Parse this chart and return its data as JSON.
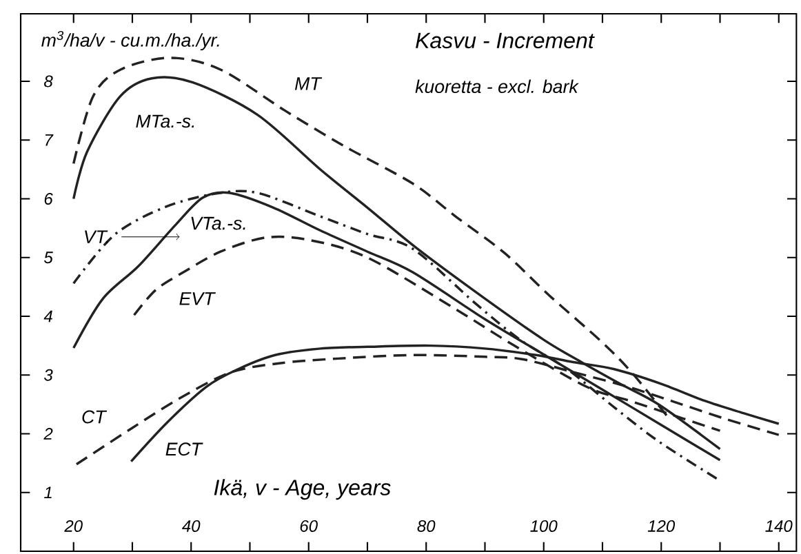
{
  "chart_data": {
    "type": "line",
    "title": "Kasvu - Increment",
    "subtitle": "kuoretta - excl. bark",
    "ylabel": "m$^{3}$/ha/v - cu.m./ha./yr.",
    "xlabel": "Ikä, v - Age, years",
    "xlim": [
      11,
      143
    ],
    "ylim": [
      0,
      9.15
    ],
    "xticks": [
      20,
      {
        "value": 30,
        "label": null
      },
      40,
      {
        "value": 50,
        "label": null
      },
      60,
      {
        "value": 70,
        "label": null
      },
      80,
      {
        "value": 90,
        "label": null
      },
      100,
      {
        "value": 110,
        "label": null
      },
      120,
      {
        "value": 130,
        "label": null
      },
      140
    ],
    "yticks": [
      1,
      2,
      3,
      4,
      5,
      6,
      7,
      8
    ],
    "marker": "none",
    "series": [
      {
        "name": "MT",
        "color": "#222222",
        "line_style": "dashed",
        "x": [
          20,
          23.3,
          28,
          36.4,
          45,
          56,
          66,
          77.7,
          85,
          93.3,
          101,
          109.7,
          115,
          121
        ],
        "values": [
          6.6,
          7.74,
          8.2,
          8.4,
          8.2,
          7.5,
          6.9,
          6.26,
          5.7,
          5.08,
          4.35,
          3.58,
          3.04,
          2.3
        ]
      },
      {
        "name": "MTa.-s.",
        "color": "#222222",
        "line_style": "solid",
        "x": [
          20,
          22.3,
          27.9,
          33.3,
          40.3,
          51.3,
          62.1,
          70,
          78.5,
          90,
          100,
          106.4,
          113,
          119.7,
          130
        ],
        "values": [
          6.0,
          6.8,
          7.74,
          8.05,
          7.98,
          7.43,
          6.49,
          5.85,
          5.15,
          4.3,
          3.6,
          3.22,
          2.85,
          2.49,
          1.74
        ]
      },
      {
        "name": "VT.",
        "color": "#222222",
        "line_style": "dashdot",
        "x": [
          20,
          27,
          35.6,
          44.3,
          51.3,
          62,
          70,
          77.7,
          88.6,
          96,
          104,
          112,
          119.7,
          129.7
        ],
        "values": [
          4.56,
          5.39,
          5.86,
          6.09,
          6.1,
          5.7,
          5.4,
          5.15,
          4.2,
          3.6,
          3.1,
          2.45,
          1.86,
          1.22
        ]
      },
      {
        "name": "VTa.-s.",
        "color": "#222222",
        "line_style": "solid",
        "x": [
          20,
          25,
          31,
          37.3,
          42,
          46.6,
          54,
          62,
          70,
          77.7,
          90,
          100,
          110,
          120,
          130
        ],
        "values": [
          3.46,
          4.3,
          4.85,
          5.55,
          6.02,
          6.1,
          5.85,
          5.46,
          5.1,
          4.75,
          3.95,
          3.35,
          2.75,
          2.15,
          1.55
        ]
      },
      {
        "name": "EVT",
        "color": "#222222",
        "line_style": "dashed",
        "x": [
          30.3,
          34,
          38.7,
          45,
          52.7,
          60,
          70,
          84.7,
          95,
          107.3,
          115,
          123.7,
          130
        ],
        "values": [
          4.02,
          4.45,
          4.75,
          5.1,
          5.34,
          5.3,
          5.0,
          4.14,
          3.5,
          2.8,
          2.55,
          2.26,
          2.05
        ]
      },
      {
        "name": "CT",
        "color": "#222222",
        "line_style": "dashed",
        "x": [
          20.5,
          30,
          38,
          46.6,
          55,
          65,
          77.7,
          90,
          96.3,
          105,
          114.3,
          122,
          130.7,
          140
        ],
        "values": [
          1.48,
          2.1,
          2.6,
          3.04,
          3.2,
          3.28,
          3.34,
          3.31,
          3.27,
          3.05,
          2.8,
          2.55,
          2.26,
          1.98
        ]
      },
      {
        "name": "ECT",
        "color": "#222222",
        "line_style": "solid",
        "x": [
          29.8,
          36,
          42.6,
          48,
          54.3,
          62,
          70,
          80.7,
          90,
          98.7,
          105,
          112,
          120,
          127.4,
          134,
          140
        ],
        "values": [
          1.53,
          2.2,
          2.8,
          3.1,
          3.34,
          3.45,
          3.48,
          3.5,
          3.45,
          3.34,
          3.22,
          3.1,
          2.85,
          2.56,
          2.35,
          2.17
        ]
      }
    ]
  }
}
